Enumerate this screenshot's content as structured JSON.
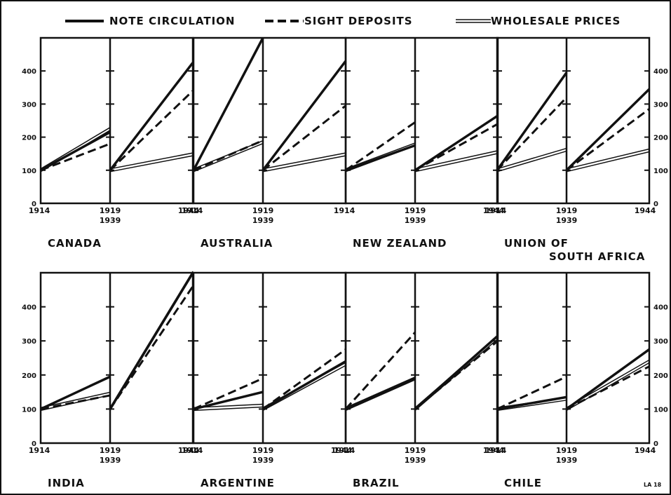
{
  "legend": {
    "note": "NOTE  CIRCULATION",
    "sight": "SIGHT  DEPOSITS",
    "wholesale": "WHOLESALE  PRICES"
  },
  "colors": {
    "ink": "#111111",
    "background": "#ffffff"
  },
  "corner_mark": "LA 18",
  "chart_data": {
    "type": "line",
    "ylim": [
      0,
      500
    ],
    "yticks": [
      0,
      100,
      200,
      300,
      400
    ],
    "grid": false,
    "legend_placement": "top",
    "series_names": [
      "NOTE CIRCULATION",
      "SIGHT DEPOSITS",
      "WHOLESALE PRICES"
    ],
    "panels": [
      {
        "country": [
          "CANADA"
        ],
        "x_labels": {
          "start": "1914",
          "mid": [
            "1919",
            "1939"
          ],
          "end": "1944"
        },
        "period1": {
          "note": [
            100,
            215
          ],
          "sight": [
            100,
            180
          ],
          "wholesale": [
            100,
            225
          ]
        },
        "period2": {
          "note": [
            100,
            425
          ],
          "sight": [
            100,
            340
          ],
          "wholesale": [
            100,
            148
          ]
        }
      },
      {
        "country": [
          "AUSTRALIA"
        ],
        "x_labels": {
          "start": "1914",
          "mid": [
            "1919",
            "1939"
          ],
          "end": ""
        },
        "period1": {
          "note": [
            100,
            500
          ],
          "sight": [
            100,
            190
          ],
          "wholesale": [
            100,
            185
          ]
        },
        "period2": {
          "note": [
            100,
            430
          ],
          "sight": [
            100,
            295
          ],
          "wholesale": [
            100,
            148
          ]
        }
      },
      {
        "country": [
          "NEW  ZEALAND"
        ],
        "x_labels": {
          "start": "1914",
          "mid": [
            "1919",
            "1939"
          ],
          "end": "1944"
        },
        "period1": {
          "note": [
            100,
            175
          ],
          "sight": [
            100,
            245
          ],
          "wholesale": [
            100,
            178
          ]
        },
        "period2": {
          "note": [
            100,
            265
          ],
          "sight": [
            100,
            240
          ],
          "wholesale": [
            100,
            155
          ]
        }
      },
      {
        "country": [
          "UNION OF",
          "SOUTH AFRICA"
        ],
        "x_labels": {
          "start": "1914",
          "mid": [
            "1919",
            "1939"
          ],
          "end": "1944"
        },
        "period1": {
          "note": [
            100,
            395
          ],
          "sight": [
            100,
            320
          ],
          "wholesale": [
            100,
            162
          ]
        },
        "period2": {
          "note": [
            100,
            345
          ],
          "sight": [
            100,
            285
          ],
          "wholesale": [
            100,
            160
          ]
        }
      },
      {
        "country": [
          "INDIA"
        ],
        "x_labels": {
          "start": "1914",
          "mid": [
            "1919",
            "1939"
          ],
          "end": "1944"
        },
        "period1": {
          "note": [
            100,
            195
          ],
          "sight": [
            100,
            140
          ],
          "wholesale": [
            100,
            145
          ]
        },
        "period2": {
          "note": [
            100,
            500
          ],
          "sight": [
            100,
            460
          ],
          "wholesale": [
            100,
            500
          ]
        }
      },
      {
        "country": [
          "ARGENTINE"
        ],
        "x_labels": {
          "start": "1914",
          "mid": [
            "1919",
            "1939"
          ],
          "end": "1944"
        },
        "period1": {
          "note": [
            100,
            150
          ],
          "sight": [
            100,
            190
          ],
          "wholesale": [
            100,
            110
          ]
        },
        "period2": {
          "note": [
            100,
            240
          ],
          "sight": [
            100,
            275
          ],
          "wholesale": [
            100,
            232
          ]
        }
      },
      {
        "country": [
          "BRAZIL"
        ],
        "x_labels": {
          "start": "1914",
          "mid": [
            "1919",
            "1939"
          ],
          "end": "1944"
        },
        "period1": {
          "note": [
            100,
            190
          ],
          "sight": [
            100,
            325
          ],
          "wholesale": [
            100,
            190
          ]
        },
        "period2": {
          "note": [
            100,
            315
          ],
          "sight": [
            100,
            300
          ],
          "wholesale": [
            100,
            310
          ]
        }
      },
      {
        "country": [
          "CHILE"
        ],
        "x_labels": {
          "start": "1914",
          "mid": [
            "1919",
            "1939"
          ],
          "end": "1944"
        },
        "period1": {
          "note": [
            100,
            135
          ],
          "sight": [
            100,
            195
          ],
          "wholesale": [
            100,
            130
          ]
        },
        "period2": {
          "note": [
            100,
            275
          ],
          "sight": [
            100,
            225
          ],
          "wholesale": [
            100,
            240
          ]
        }
      }
    ]
  }
}
